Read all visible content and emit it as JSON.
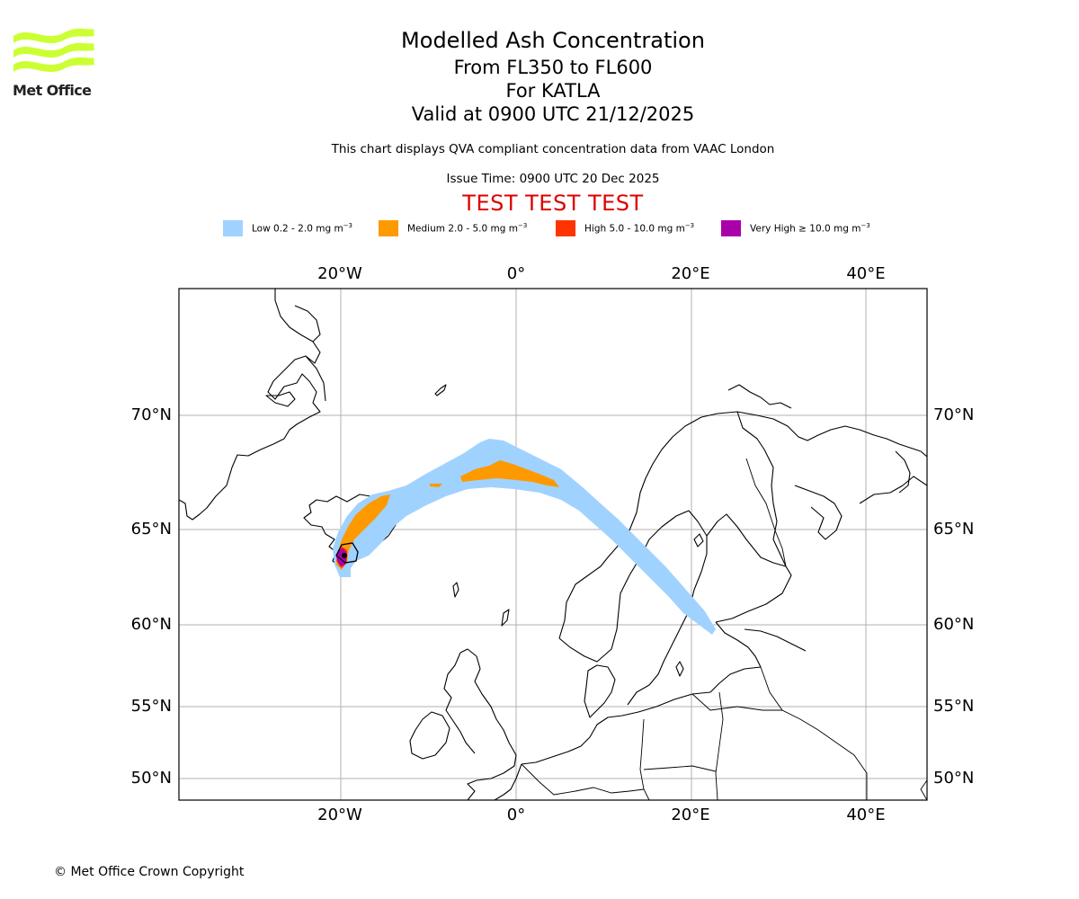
{
  "logo": {
    "text": "Met Office",
    "color": "#ccff33"
  },
  "title": {
    "main": "Modelled Ash Concentration",
    "levels": "From FL350 to FL600",
    "volcano": "For KATLA",
    "valid": "Valid at 0900 UTC 21/12/2025"
  },
  "description": "This chart displays QVA compliant concentration data from VAAC London",
  "issue_time": "Issue Time: 0900 UTC 20 Dec 2025",
  "test_banner": "TEST TEST TEST",
  "legend": [
    {
      "label": "Low 0.2 - 2.0 mg m",
      "color": "#a0d2ff"
    },
    {
      "label": "Medium 2.0 - 5.0 mg m",
      "color": "#ff9900"
    },
    {
      "label": "High 5.0 - 10.0 mg m",
      "color": "#ff3300"
    },
    {
      "label": "Very High ≥ 10.0 mg m",
      "color": "#aa00aa"
    }
  ],
  "legend_unit_exp": "−3",
  "axes": {
    "lon_labels": [
      "20°W",
      "0°",
      "20°E",
      "40°E"
    ],
    "lat_labels": [
      "70°N",
      "65°N",
      "60°N",
      "55°N",
      "50°N"
    ]
  },
  "copyright": "© Met Office Crown Copyright"
}
